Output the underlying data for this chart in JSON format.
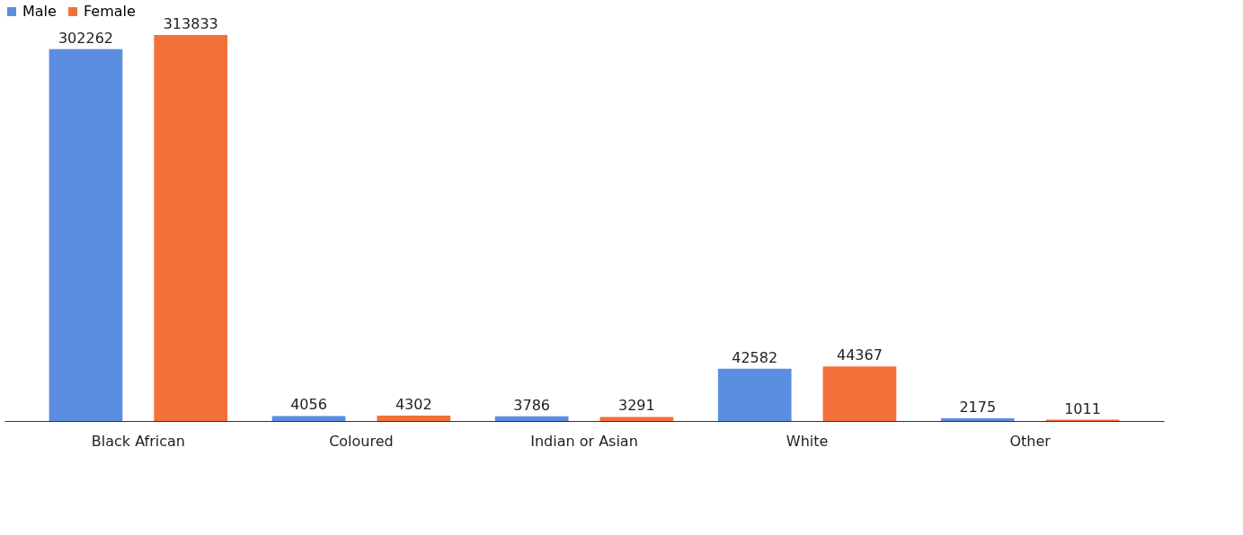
{
  "chart_data": {
    "type": "bar",
    "categories": [
      "Black African",
      "Coloured",
      "Indian or Asian",
      "White",
      "Other"
    ],
    "series": [
      {
        "name": "Male",
        "color": "#5b8ee0",
        "values": [
          302262,
          4056,
          3786,
          42582,
          2175
        ]
      },
      {
        "name": "Female",
        "color": "#f4703a",
        "values": [
          313833,
          4302,
          3291,
          44367,
          1011
        ]
      }
    ],
    "data_labels": true,
    "legend": "top",
    "grid": false
  }
}
